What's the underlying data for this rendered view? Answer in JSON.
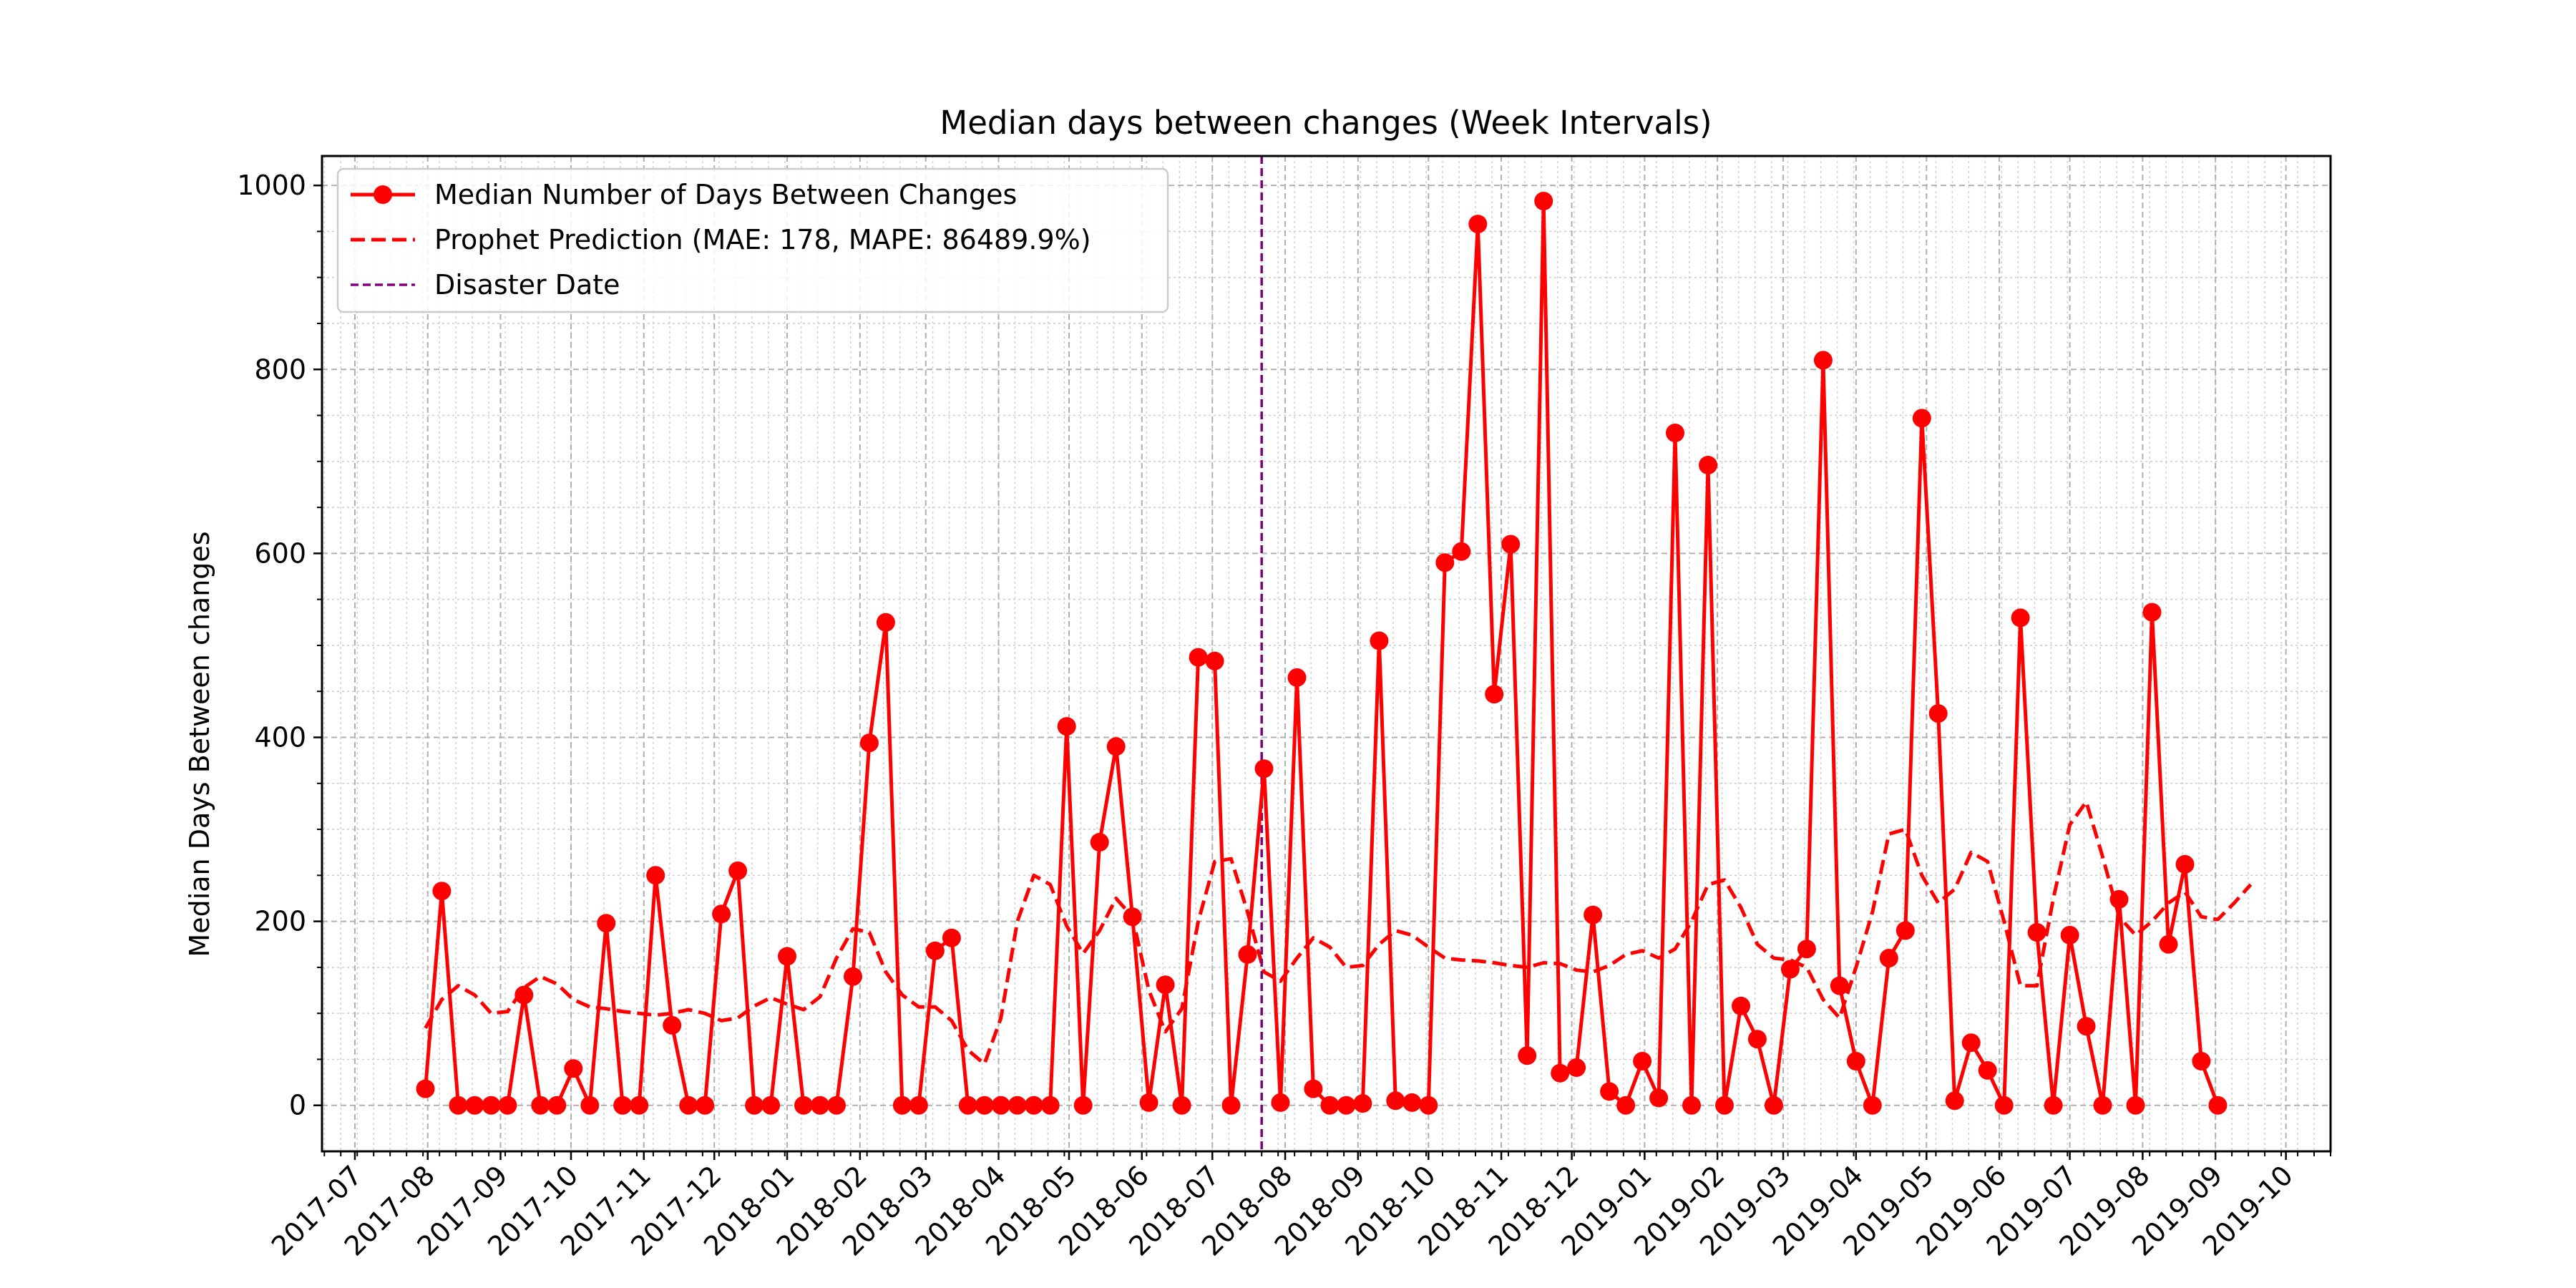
{
  "chart_data": {
    "type": "line",
    "title": "Median days between changes (Week Intervals)",
    "xlabel": "",
    "ylabel": "Median Days Between changes",
    "ylim": [
      -50,
      1032
    ],
    "yticks": [
      0,
      200,
      400,
      600,
      800,
      1000
    ],
    "xlim": [
      "2017-06-17",
      "2019-10-20"
    ],
    "xticks": [
      "2017-07",
      "2017-08",
      "2017-09",
      "2017-10",
      "2017-11",
      "2017-12",
      "2018-01",
      "2018-02",
      "2018-03",
      "2018-04",
      "2018-05",
      "2018-06",
      "2018-07",
      "2018-08",
      "2018-09",
      "2018-10",
      "2018-11",
      "2018-12",
      "2019-01",
      "2019-02",
      "2019-03",
      "2019-04",
      "2019-05",
      "2019-06",
      "2019-07",
      "2019-08",
      "2019-09",
      "2019-10"
    ],
    "grid": true,
    "legend_position": "top-left",
    "series": [
      {
        "name": "Median Number of Days Between Changes",
        "color": "#ff0000",
        "style": "solid-with-markers",
        "x": [
          "2017-07-31",
          "2017-08-07",
          "2017-08-14",
          "2017-08-21",
          "2017-08-28",
          "2017-09-04",
          "2017-09-11",
          "2017-09-18",
          "2017-09-25",
          "2017-10-02",
          "2017-10-09",
          "2017-10-16",
          "2017-10-23",
          "2017-10-30",
          "2017-11-06",
          "2017-11-13",
          "2017-11-20",
          "2017-11-27",
          "2017-12-04",
          "2017-12-11",
          "2017-12-18",
          "2017-12-25",
          "2018-01-01",
          "2018-01-08",
          "2018-01-15",
          "2018-01-22",
          "2018-01-29",
          "2018-02-05",
          "2018-02-12",
          "2018-02-19",
          "2018-02-26",
          "2018-03-05",
          "2018-03-12",
          "2018-03-19",
          "2018-03-26",
          "2018-04-02",
          "2018-04-09",
          "2018-04-16",
          "2018-04-23",
          "2018-04-30",
          "2018-05-07",
          "2018-05-14",
          "2018-05-21",
          "2018-05-28",
          "2018-06-04",
          "2018-06-11",
          "2018-06-18",
          "2018-06-25",
          "2018-07-02",
          "2018-07-09",
          "2018-07-16",
          "2018-07-23",
          "2018-07-30",
          "2018-08-06",
          "2018-08-13",
          "2018-08-20",
          "2018-08-27",
          "2018-09-03",
          "2018-09-10",
          "2018-09-17",
          "2018-09-24",
          "2018-10-01",
          "2018-10-08",
          "2018-10-15",
          "2018-10-22",
          "2018-10-29",
          "2018-11-05",
          "2018-11-12",
          "2018-11-19",
          "2018-11-26",
          "2018-12-03",
          "2018-12-10",
          "2018-12-17",
          "2018-12-24",
          "2018-12-31",
          "2019-01-07",
          "2019-01-14",
          "2019-01-21",
          "2019-01-28",
          "2019-02-04",
          "2019-02-11",
          "2019-02-18",
          "2019-02-25",
          "2019-03-04",
          "2019-03-11",
          "2019-03-18",
          "2019-03-25",
          "2019-04-01",
          "2019-04-08",
          "2019-04-15",
          "2019-04-22",
          "2019-04-29",
          "2019-05-06",
          "2019-05-13",
          "2019-05-20",
          "2019-05-27",
          "2019-06-03",
          "2019-06-10",
          "2019-06-17",
          "2019-06-24",
          "2019-07-01",
          "2019-07-08",
          "2019-07-15",
          "2019-07-22",
          "2019-07-29",
          "2019-08-05",
          "2019-08-12",
          "2019-08-19",
          "2019-08-26",
          "2019-09-02"
        ],
        "y": [
          18,
          233,
          0,
          0,
          0,
          0,
          120,
          0,
          0,
          40,
          0,
          198,
          0,
          0,
          250,
          87,
          0,
          0,
          208,
          255,
          0,
          0,
          162,
          0,
          0,
          0,
          140,
          394,
          525,
          0,
          0,
          168,
          182,
          0,
          0,
          0,
          0,
          0,
          0,
          412,
          0,
          286,
          390,
          205,
          3,
          131,
          0,
          487,
          483,
          0,
          164,
          366,
          3,
          465,
          18,
          0,
          0,
          2,
          505,
          5,
          3,
          0,
          590,
          602,
          958,
          447,
          610,
          54,
          983,
          35,
          41,
          207,
          15,
          0,
          48,
          8,
          731,
          0,
          696,
          0,
          108,
          72,
          0,
          148,
          170,
          810,
          130,
          48,
          0,
          160,
          190,
          747,
          426,
          5,
          68,
          38,
          0,
          530,
          188,
          0,
          185,
          86,
          0,
          224,
          0,
          536,
          175,
          262,
          48,
          0
        ]
      },
      {
        "name": "Prophet Prediction (MAE: 178, MAPE: 86489.9%)",
        "color": "#ff0000",
        "style": "dashed",
        "x": [
          "2017-07-31",
          "2017-08-07",
          "2017-08-14",
          "2017-08-21",
          "2017-08-28",
          "2017-09-04",
          "2017-09-11",
          "2017-09-18",
          "2017-09-25",
          "2017-10-02",
          "2017-10-09",
          "2017-10-16",
          "2017-10-23",
          "2017-10-30",
          "2017-11-06",
          "2017-11-13",
          "2017-11-20",
          "2017-11-27",
          "2017-12-04",
          "2017-12-11",
          "2017-12-18",
          "2017-12-25",
          "2018-01-01",
          "2018-01-08",
          "2018-01-15",
          "2018-01-22",
          "2018-01-29",
          "2018-02-05",
          "2018-02-12",
          "2018-02-19",
          "2018-02-26",
          "2018-03-05",
          "2018-03-12",
          "2018-03-19",
          "2018-03-26",
          "2018-04-02",
          "2018-04-09",
          "2018-04-16",
          "2018-04-23",
          "2018-04-30",
          "2018-05-07",
          "2018-05-14",
          "2018-05-21",
          "2018-05-28",
          "2018-06-04",
          "2018-06-11",
          "2018-06-18",
          "2018-06-25",
          "2018-07-02",
          "2018-07-09",
          "2018-07-16",
          "2018-07-23",
          "2018-07-30",
          "2018-08-06",
          "2018-08-13",
          "2018-08-20",
          "2018-08-27",
          "2018-09-03",
          "2018-09-10",
          "2018-09-17",
          "2018-09-24",
          "2018-10-01",
          "2018-10-08",
          "2018-10-15",
          "2018-10-22",
          "2018-10-29",
          "2018-11-05",
          "2018-11-12",
          "2018-11-19",
          "2018-11-26",
          "2018-12-03",
          "2018-12-10",
          "2018-12-17",
          "2018-12-24",
          "2018-12-31",
          "2019-01-07",
          "2019-01-14",
          "2019-01-21",
          "2019-01-28",
          "2019-02-04",
          "2019-02-11",
          "2019-02-18",
          "2019-02-25",
          "2019-03-04",
          "2019-03-11",
          "2019-03-18",
          "2019-03-25",
          "2019-04-01",
          "2019-04-08",
          "2019-04-15",
          "2019-04-22",
          "2019-04-29",
          "2019-05-06",
          "2019-05-13",
          "2019-05-20",
          "2019-05-27",
          "2019-06-03",
          "2019-06-10",
          "2019-06-17",
          "2019-06-24",
          "2019-07-01",
          "2019-07-08",
          "2019-07-15",
          "2019-07-22",
          "2019-07-29",
          "2019-08-05",
          "2019-08-12",
          "2019-08-19",
          "2019-08-26",
          "2019-09-02",
          "2019-09-09",
          "2019-09-16"
        ],
        "y": [
          84,
          115,
          130,
          120,
          100,
          102,
          128,
          140,
          132,
          115,
          107,
          105,
          102,
          100,
          98,
          100,
          104,
          100,
          92,
          95,
          108,
          117,
          110,
          104,
          118,
          160,
          192,
          188,
          145,
          120,
          107,
          107,
          92,
          60,
          45,
          95,
          200,
          250,
          240,
          195,
          165,
          190,
          225,
          205,
          125,
          80,
          105,
          200,
          265,
          268,
          210,
          145,
          135,
          160,
          182,
          172,
          150,
          152,
          175,
          190,
          185,
          172,
          160,
          158,
          157,
          155,
          152,
          150,
          155,
          154,
          147,
          145,
          152,
          164,
          168,
          160,
          170,
          200,
          240,
          245,
          215,
          175,
          160,
          158,
          150,
          115,
          95,
          150,
          210,
          295,
          300,
          250,
          220,
          235,
          275,
          265,
          200,
          130,
          130,
          225,
          305,
          330,
          270,
          205,
          185,
          200,
          220,
          232,
          205,
          202,
          220,
          240
        ]
      }
    ],
    "vline": {
      "name": "Disaster Date",
      "x": "2018-07-22",
      "color": "#800080",
      "style": "dashed"
    }
  }
}
